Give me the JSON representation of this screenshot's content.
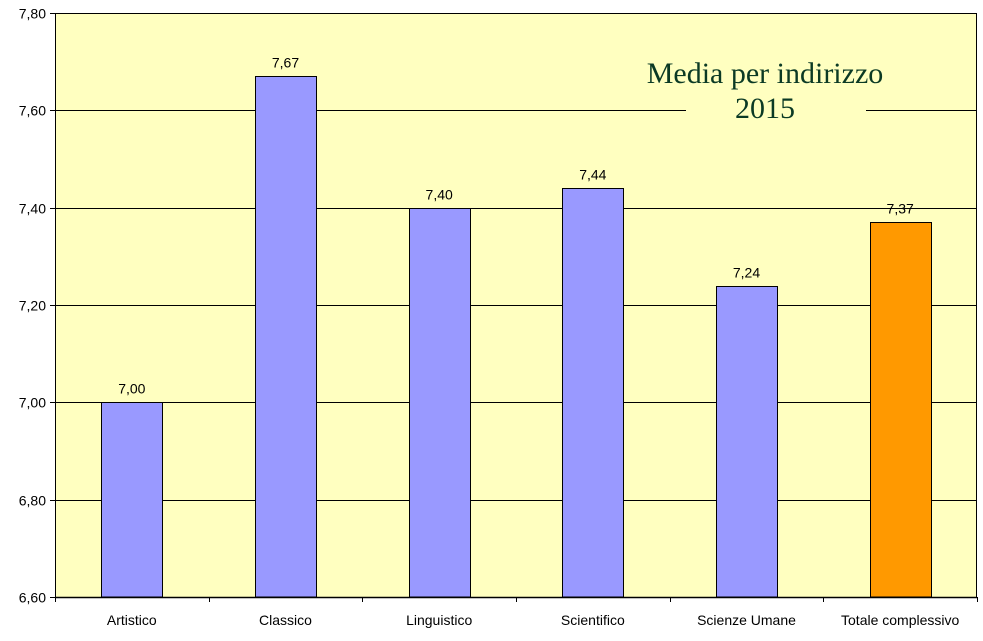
{
  "chart_data": {
    "type": "bar",
    "title_lines": [
      "Media per indirizzo",
      "2015"
    ],
    "categories": [
      "Artistico",
      "Classico",
      "Linguistico",
      "Scientifico",
      "Scienze Umane",
      "Totale complessivo"
    ],
    "values": [
      7.0,
      7.67,
      7.4,
      7.44,
      7.24,
      7.37
    ],
    "value_labels": [
      "7,00",
      "7,67",
      "7,40",
      "7,44",
      "7,24",
      "7,37"
    ],
    "ylim": [
      6.6,
      7.8
    ],
    "y_ticks": [
      6.6,
      6.8,
      7.0,
      7.2,
      7.4,
      7.6,
      7.8
    ],
    "y_tick_labels": [
      "6,60",
      "6,80",
      "7,00",
      "7,20",
      "7,40",
      "7,60",
      "7,80"
    ],
    "xlabel": "",
    "ylabel": "",
    "grid": true,
    "legend": "none",
    "colors": {
      "plot_background": "#ffffc0",
      "bar": "#9999ff",
      "highlight_bar": "#ff9900",
      "gridline": "#000000",
      "title": "#0b3a24"
    },
    "highlight_index": 5
  }
}
